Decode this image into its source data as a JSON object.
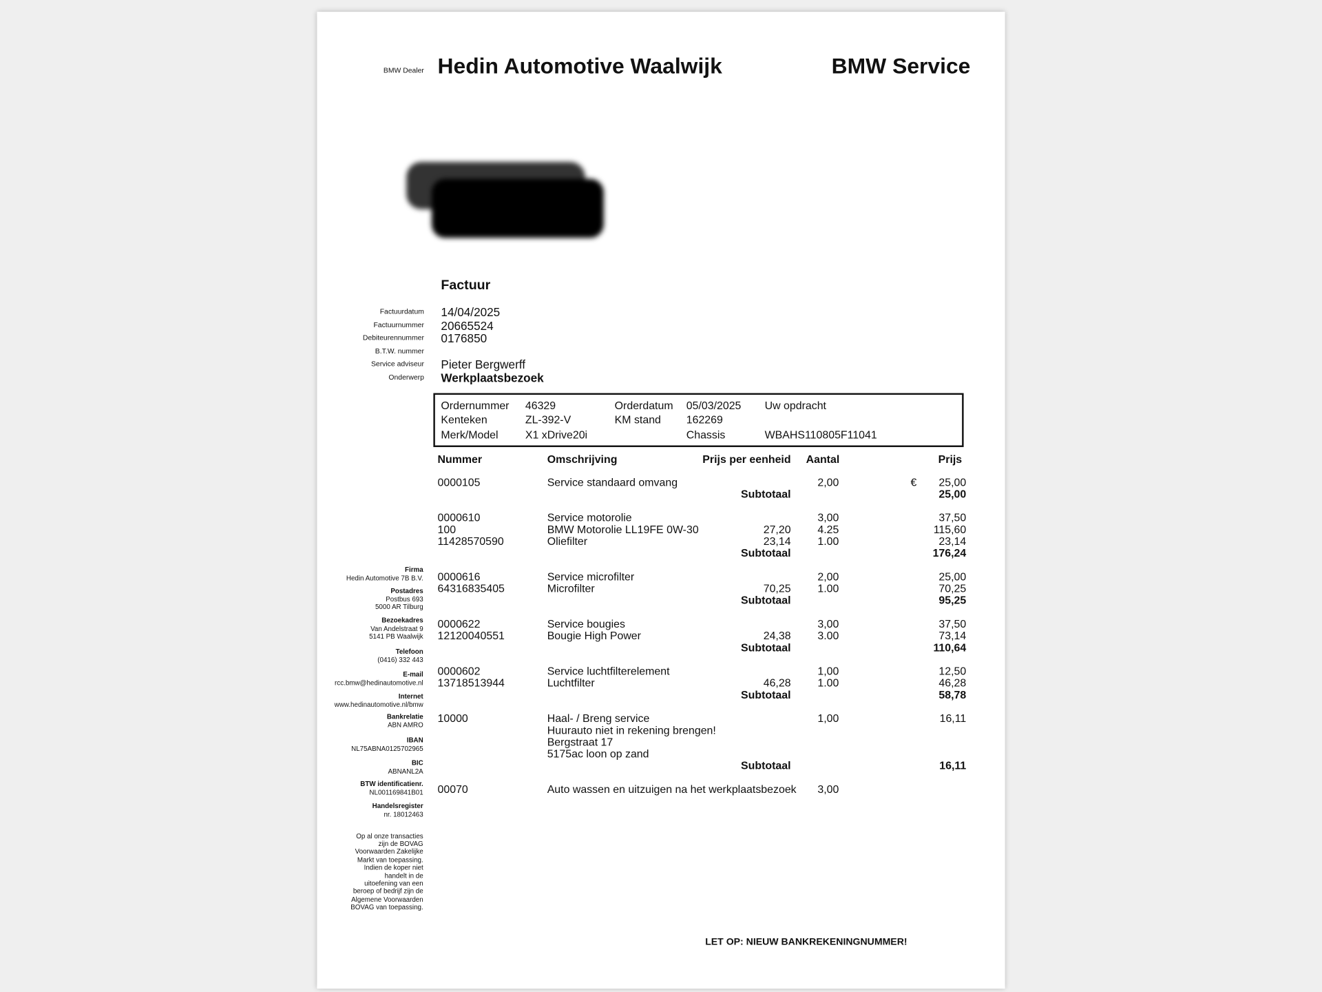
{
  "header": {
    "dealer_label": "BMW Dealer",
    "dealer_name": "Hedin Automotive Waalwijk",
    "brand": "BMW Service"
  },
  "invoice": {
    "title": "Factuur",
    "fields": [
      {
        "label": "Factuurdatum",
        "value": "14/04/2025"
      },
      {
        "label": "Factuurnummer",
        "value": "20665524"
      },
      {
        "label": "Debiteurennummer",
        "value": "0176850"
      },
      {
        "label": "B.T.W. nummer"
      },
      {
        "label": "Service adviseur",
        "value": "Pieter Bergwerff"
      },
      {
        "label": "Onderwerp",
        "value": "Werkplaatsbezoek"
      }
    ]
  },
  "order_box": {
    "rows": [
      [
        "Ordernummer",
        "46329",
        "Orderdatum",
        "05/03/2025",
        "Uw opdracht"
      ],
      [
        "Kenteken",
        "ZL-392-V",
        "KM stand",
        "162269",
        null
      ],
      [
        "Merk/Model",
        "X1 xDrive20i",
        null,
        "Chassis",
        "WBAHS110805F11041"
      ]
    ]
  },
  "table": {
    "columns": [
      "Nummer",
      "Omschrijving",
      "Prijs per eenheid",
      "Aantal",
      "Prijs"
    ],
    "subtotal_label": "Subtotaal",
    "groups": [
      {
        "lines": [
          {
            "number": "0000105",
            "description": "Service standaard omvang",
            "quantity": "2,00",
            "currency": "€",
            "price": "25,00"
          }
        ],
        "subtotal": "25,00"
      },
      {
        "lines": [
          {
            "number": "0000610",
            "description": "Service motorolie",
            "quantity": "3,00",
            "price": "37,50"
          },
          {
            "number": "100",
            "description": "BMW Motorolie LL19FE 0W-30",
            "unit_price": "27,20",
            "quantity": "4.25",
            "price": "115,60"
          },
          {
            "number": "11428570590",
            "description": "Oliefilter",
            "unit_price": "23,14",
            "quantity": "1.00",
            "price": "23,14"
          }
        ],
        "subtotal": "176,24"
      },
      {
        "lines": [
          {
            "number": "0000616",
            "description": "Service microfilter",
            "quantity": "2,00",
            "price": "25,00"
          },
          {
            "number": "64316835405",
            "description": "Microfilter",
            "unit_price": "70,25",
            "quantity": "1.00",
            "price": "70,25"
          }
        ],
        "subtotal": "95,25"
      },
      {
        "lines": [
          {
            "number": "0000622",
            "description": "Service bougies",
            "quantity": "3,00",
            "price": "37,50"
          },
          {
            "number": "12120040551",
            "description": "Bougie High Power",
            "unit_price": "24,38",
            "quantity": "3.00",
            "price": "73,14"
          }
        ],
        "subtotal": "110,64"
      },
      {
        "lines": [
          {
            "number": "0000602",
            "description": "Service luchtfilterelement",
            "quantity": "1,00",
            "price": "12,50"
          },
          {
            "number": "13718513944",
            "description": "Luchtfilter",
            "unit_price": "46,28",
            "quantity": "1.00",
            "price": "46,28"
          }
        ],
        "subtotal": "58,78"
      },
      {
        "lines": [
          {
            "number": "10000",
            "description": "Haal- / Breng service",
            "quantity": "1,00",
            "price": "16,11"
          },
          {
            "description": "Huurauto niet in rekening brengen!"
          },
          {
            "description": "Bergstraat 17"
          },
          {
            "description": "5175ac loon op zand"
          }
        ],
        "subtotal": "16,11"
      },
      {
        "lines": [
          {
            "number": "00070",
            "description": "Auto wassen en uitzuigen na het werkplaatsbezoek",
            "quantity": "3,00"
          }
        ]
      }
    ]
  },
  "sidebar": {
    "sections": [
      {
        "label": "Firma",
        "lines": [
          "Hedin Automotive 7B B.V."
        ]
      },
      {
        "label": "Postadres",
        "lines": [
          "Postbus 693",
          "5000 AR Tilburg"
        ]
      },
      {
        "label": "Bezoekadres",
        "lines": [
          "Van Andelstraat 9",
          "5141 PB Waalwijk"
        ]
      },
      {
        "label": "Telefoon",
        "lines": [
          "(0416) 332 443"
        ]
      },
      {
        "label": "E-mail",
        "lines": [
          "rcc.bmw@hedinautomotive.nl"
        ]
      },
      {
        "label": "Internet",
        "lines": [
          "www.hedinautomotive.nl/bmw"
        ]
      },
      {
        "label": "Bankrelatie",
        "lines": [
          "ABN AMRO"
        ]
      },
      {
        "label": "IBAN",
        "lines": [
          "NL75ABNA0125702965"
        ]
      },
      {
        "label": "BIC",
        "lines": [
          "ABNANL2A"
        ]
      },
      {
        "label": "BTW identificatienr.",
        "lines": [
          "NL001169841B01"
        ]
      },
      {
        "label": "Handelsregister",
        "lines": [
          "nr. 18012463"
        ]
      }
    ],
    "terms": [
      "Op al onze transacties",
      "zijn de BOVAG",
      "Voorwaarden Zakelijke",
      "Markt van toepassing.",
      "Indien de koper niet",
      "handelt in de",
      "uitoefening van een",
      "beroep of bedrijf zijn de",
      "Algemene Voorwaarden",
      "BOVAG van toepassing."
    ]
  },
  "footer": {
    "notice": "LET OP: NIEUW BANKREKENINGNUMMER!"
  }
}
